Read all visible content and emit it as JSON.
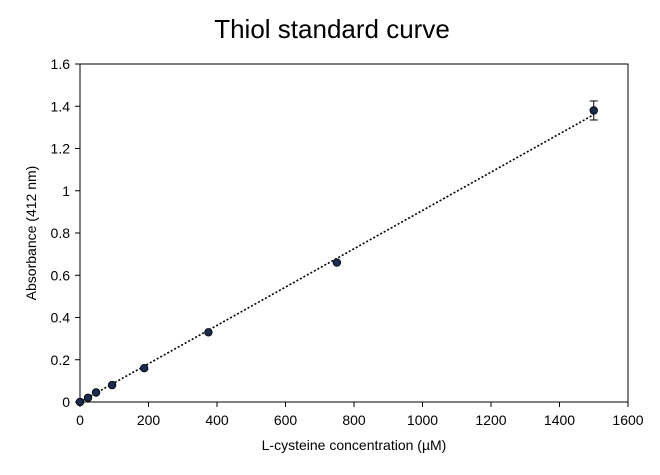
{
  "chart_data": {
    "type": "scatter",
    "title": "Thiol standard curve",
    "xlabel": "L-cysteine concentration (µM)",
    "ylabel": "Absorbance (412 nm)",
    "xlim": [
      0,
      1600
    ],
    "ylim": [
      0,
      1.6
    ],
    "xticks": [
      0,
      200,
      400,
      600,
      800,
      1000,
      1200,
      1400,
      1600
    ],
    "xtick_labels": [
      "0",
      "200",
      "400",
      "600",
      "800",
      "1000",
      "1200",
      "1400",
      "1600"
    ],
    "yticks": [
      0,
      0.2,
      0.4,
      0.6,
      0.8,
      1.0,
      1.2,
      1.4,
      1.6
    ],
    "ytick_labels": [
      "0",
      "0.2",
      "0.4",
      "0.6",
      "0.8",
      "1",
      "1.2",
      "1.4",
      "1.6"
    ],
    "grid": false,
    "series": [
      {
        "x": [
          0,
          23.4,
          46.9,
          93.75,
          187.5,
          375,
          750,
          1500
        ],
        "y": [
          0.0,
          0.02,
          0.045,
          0.08,
          0.16,
          0.33,
          0.66,
          1.38
        ],
        "yerr": [
          0,
          0,
          0,
          0,
          0,
          0,
          0,
          0.045
        ],
        "color": "#1c2a4f"
      }
    ],
    "trendline": {
      "style": "dotted",
      "x": [
        0,
        1500
      ],
      "y": [
        0.0,
        1.36
      ],
      "color": "#000000"
    }
  }
}
